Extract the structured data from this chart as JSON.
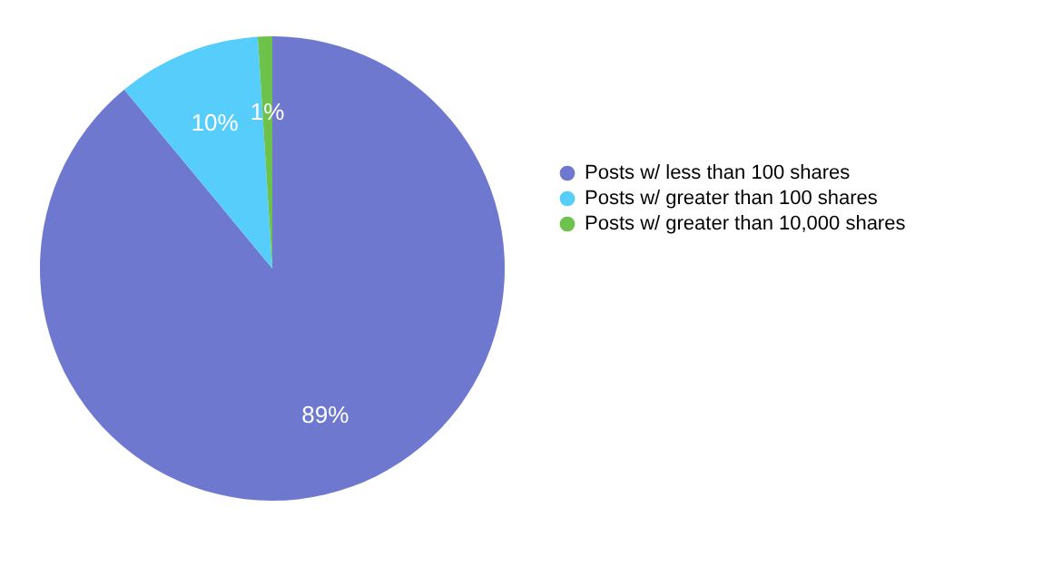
{
  "chart_data": {
    "type": "pie",
    "categories": [
      "Posts w/ less than 100 shares",
      "Posts w/ greater than 100 shares",
      "Posts w/ greater than 10,000 shares"
    ],
    "values": [
      89,
      10,
      1
    ],
    "colors": [
      "#6f78cf",
      "#56cdfb",
      "#6cc24a"
    ],
    "value_labels": [
      "89%",
      "10%",
      "1%"
    ],
    "legend": "right"
  }
}
